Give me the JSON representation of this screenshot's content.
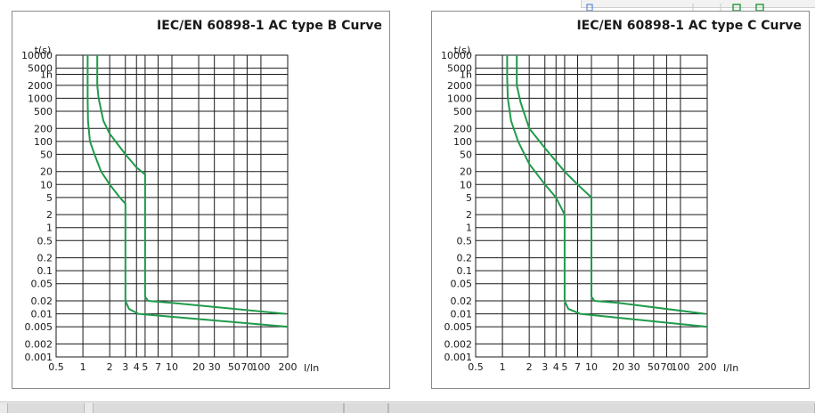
{
  "chart_data": [
    {
      "type": "line",
      "title": "IEC/EN 60898-1 AC type B Curve",
      "ylabel": "t(s)",
      "xlabel": "I/In",
      "x_scale": "log",
      "y_scale": "log",
      "xlim": [
        0.5,
        200
      ],
      "ylim": [
        0.001,
        10000
      ],
      "x_ticks": [
        {
          "v": 0.5,
          "label": "0.5"
        },
        {
          "v": 1,
          "label": "1"
        },
        {
          "v": 2,
          "label": "2"
        },
        {
          "v": 3,
          "label": "3"
        },
        {
          "v": 4,
          "label": "4"
        },
        {
          "v": 5,
          "label": "5"
        },
        {
          "v": 7,
          "label": "7"
        },
        {
          "v": 10,
          "label": "10"
        },
        {
          "v": 20,
          "label": "20"
        },
        {
          "v": 30,
          "label": "30"
        },
        {
          "v": 50,
          "label": "50"
        },
        {
          "v": 70,
          "label": "70"
        },
        {
          "v": 100,
          "label": "100"
        },
        {
          "v": 200,
          "label": "200"
        }
      ],
      "y_ticks": [
        {
          "v": 0.001,
          "label": "0.001"
        },
        {
          "v": 0.002,
          "label": "0.002"
        },
        {
          "v": 0.005,
          "label": "0.005"
        },
        {
          "v": 0.01,
          "label": "0.01"
        },
        {
          "v": 0.02,
          "label": "0.02"
        },
        {
          "v": 0.05,
          "label": "0.05"
        },
        {
          "v": 0.1,
          "label": "0.1"
        },
        {
          "v": 0.2,
          "label": "0.2"
        },
        {
          "v": 0.5,
          "label": "0.5"
        },
        {
          "v": 1,
          "label": "1"
        },
        {
          "v": 2,
          "label": "2"
        },
        {
          "v": 5,
          "label": "5"
        },
        {
          "v": 10,
          "label": "10"
        },
        {
          "v": 20,
          "label": "20"
        },
        {
          "v": 50,
          "label": "50"
        },
        {
          "v": 100,
          "label": "100"
        },
        {
          "v": 200,
          "label": "200"
        },
        {
          "v": 500,
          "label": "500"
        },
        {
          "v": 1000,
          "label": "1000"
        },
        {
          "v": 2000,
          "label": "2000"
        },
        {
          "v": 3600,
          "label": "1h"
        },
        {
          "v": 5000,
          "label": "5000"
        },
        {
          "v": 10000,
          "label": "10000"
        }
      ],
      "grid": true,
      "color": "#1f9b4a",
      "series": [
        {
          "points": [
            [
              1.13,
              10000
            ],
            [
              1.13,
              5000
            ],
            [
              1.13,
              1000
            ],
            [
              1.14,
              300
            ],
            [
              1.2,
              100
            ],
            [
              1.35,
              50
            ],
            [
              1.6,
              20
            ],
            [
              2.0,
              10
            ],
            [
              2.6,
              5
            ],
            [
              3.0,
              3.6
            ],
            [
              3.0,
              0.02
            ],
            [
              3.3,
              0.013
            ],
            [
              4.2,
              0.01
            ],
            [
              200,
              0.005
            ]
          ]
        },
        {
          "points": [
            [
              1.45,
              10000
            ],
            [
              1.45,
              5000
            ],
            [
              1.45,
              2000
            ],
            [
              1.5,
              1000
            ],
            [
              1.7,
              300
            ],
            [
              2.0,
              150
            ],
            [
              3.0,
              50
            ],
            [
              4.0,
              25
            ],
            [
              5.0,
              17
            ],
            [
              5.0,
              0.025
            ],
            [
              5.4,
              0.02
            ],
            [
              10,
              0.018
            ],
            [
              190,
              0.01
            ]
          ]
        }
      ]
    },
    {
      "type": "line",
      "title": "IEC/EN 60898-1 AC type C Curve",
      "ylabel": "t(s)",
      "xlabel": "I/In",
      "x_scale": "log",
      "y_scale": "log",
      "xlim": [
        0.5,
        200
      ],
      "ylim": [
        0.001,
        10000
      ],
      "x_ticks": [
        {
          "v": 0.5,
          "label": "0.5"
        },
        {
          "v": 1,
          "label": "1"
        },
        {
          "v": 2,
          "label": "2"
        },
        {
          "v": 3,
          "label": "3"
        },
        {
          "v": 4,
          "label": "4"
        },
        {
          "v": 5,
          "label": "5"
        },
        {
          "v": 7,
          "label": "7"
        },
        {
          "v": 10,
          "label": "10"
        },
        {
          "v": 20,
          "label": "20"
        },
        {
          "v": 30,
          "label": "30"
        },
        {
          "v": 50,
          "label": "50"
        },
        {
          "v": 70,
          "label": "70"
        },
        {
          "v": 100,
          "label": "100"
        },
        {
          "v": 200,
          "label": "200"
        }
      ],
      "y_ticks": [
        {
          "v": 0.001,
          "label": "0.001"
        },
        {
          "v": 0.002,
          "label": "0.002"
        },
        {
          "v": 0.005,
          "label": "0.005"
        },
        {
          "v": 0.01,
          "label": "0.01"
        },
        {
          "v": 0.02,
          "label": "0.02"
        },
        {
          "v": 0.05,
          "label": "0.05"
        },
        {
          "v": 0.1,
          "label": "0.1"
        },
        {
          "v": 0.2,
          "label": "0.2"
        },
        {
          "v": 0.5,
          "label": "0.5"
        },
        {
          "v": 1,
          "label": "1"
        },
        {
          "v": 2,
          "label": "2"
        },
        {
          "v": 5,
          "label": "5"
        },
        {
          "v": 10,
          "label": "10"
        },
        {
          "v": 20,
          "label": "20"
        },
        {
          "v": 50,
          "label": "50"
        },
        {
          "v": 100,
          "label": "100"
        },
        {
          "v": 200,
          "label": "200"
        },
        {
          "v": 500,
          "label": "500"
        },
        {
          "v": 1000,
          "label": "1000"
        },
        {
          "v": 2000,
          "label": "2000"
        },
        {
          "v": 3600,
          "label": "1h"
        },
        {
          "v": 5000,
          "label": "5000"
        },
        {
          "v": 10000,
          "label": "10000"
        }
      ],
      "grid": true,
      "color": "#1f9b4a",
      "series": [
        {
          "points": [
            [
              1.13,
              10000
            ],
            [
              1.13,
              3000
            ],
            [
              1.15,
              1000
            ],
            [
              1.25,
              300
            ],
            [
              1.5,
              100
            ],
            [
              2.0,
              30
            ],
            [
              3.0,
              10
            ],
            [
              4.0,
              5
            ],
            [
              5.0,
              2
            ],
            [
              5.0,
              0.02
            ],
            [
              5.5,
              0.013
            ],
            [
              7.5,
              0.01
            ],
            [
              200,
              0.005
            ]
          ]
        },
        {
          "points": [
            [
              1.45,
              10000
            ],
            [
              1.45,
              2000
            ],
            [
              1.6,
              800
            ],
            [
              2.0,
              200
            ],
            [
              3.0,
              70
            ],
            [
              5.0,
              20
            ],
            [
              7.0,
              10
            ],
            [
              10,
              5
            ],
            [
              10,
              0.025
            ],
            [
              10.8,
              0.02
            ],
            [
              20,
              0.018
            ],
            [
              190,
              0.01
            ]
          ]
        }
      ]
    }
  ]
}
